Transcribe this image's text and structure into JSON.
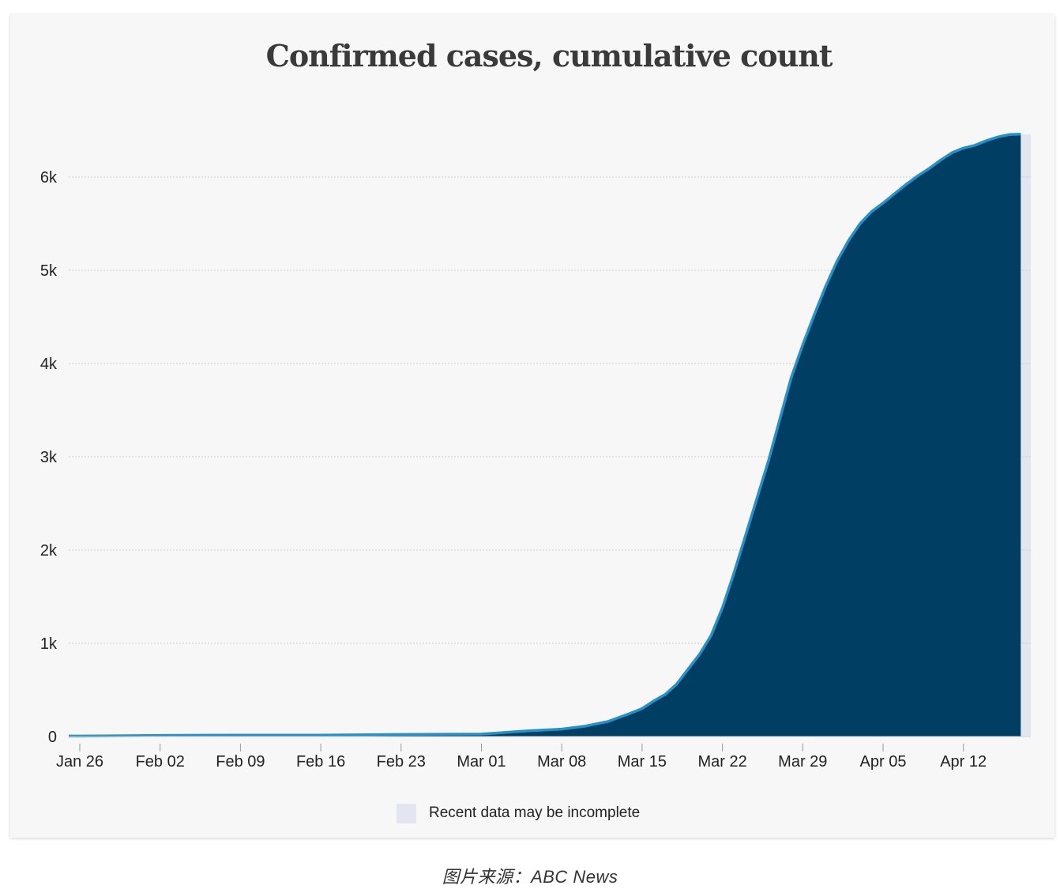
{
  "chart_data": {
    "type": "area",
    "title": "Confirmed cases, cumulative count",
    "xlabel": "",
    "ylabel": "",
    "x_start": "2020-01-26",
    "x_tick_labels": [
      "Jan 26",
      "Feb 02",
      "Feb 09",
      "Feb 16",
      "Feb 23",
      "Mar 01",
      "Mar 08",
      "Mar 15",
      "Mar 22",
      "Mar 29",
      "Apr 05",
      "Apr 12"
    ],
    "y_tick_labels": [
      "0",
      "1k",
      "2k",
      "3k",
      "4k",
      "5k",
      "6k"
    ],
    "y_ticks": [
      0,
      1000,
      2000,
      3000,
      4000,
      5000,
      6000
    ],
    "ylim": [
      0,
      6500
    ],
    "grid": true,
    "legend": {
      "position": "bottom",
      "entries": [
        "Recent data may be incomplete"
      ]
    },
    "incomplete_period": {
      "from": "2020-04-16",
      "to": "2020-04-17"
    },
    "colors": {
      "area_fill": "#003f63",
      "line": "#2a8fc4",
      "incomplete_band": "#e3e6f0",
      "grid": "#cccccc"
    },
    "series": [
      {
        "values": [
          {
            "x": "2020-01-26",
            "y": 5
          },
          {
            "x": "2020-02-02",
            "y": 12
          },
          {
            "x": "2020-02-09",
            "y": 15
          },
          {
            "x": "2020-02-16",
            "y": 15
          },
          {
            "x": "2020-02-23",
            "y": 22
          },
          {
            "x": "2020-03-01",
            "y": 26
          },
          {
            "x": "2020-03-05",
            "y": 60
          },
          {
            "x": "2020-03-08",
            "y": 80
          },
          {
            "x": "2020-03-10",
            "y": 110
          },
          {
            "x": "2020-03-12",
            "y": 160
          },
          {
            "x": "2020-03-14",
            "y": 250
          },
          {
            "x": "2020-03-15",
            "y": 300
          },
          {
            "x": "2020-03-16",
            "y": 380
          },
          {
            "x": "2020-03-17",
            "y": 450
          },
          {
            "x": "2020-03-18",
            "y": 560
          },
          {
            "x": "2020-03-19",
            "y": 720
          },
          {
            "x": "2020-03-20",
            "y": 880
          },
          {
            "x": "2020-03-21",
            "y": 1080
          },
          {
            "x": "2020-03-22",
            "y": 1380
          },
          {
            "x": "2020-03-23",
            "y": 1750
          },
          {
            "x": "2020-03-24",
            "y": 2150
          },
          {
            "x": "2020-03-25",
            "y": 2550
          },
          {
            "x": "2020-03-26",
            "y": 2950
          },
          {
            "x": "2020-03-27",
            "y": 3400
          },
          {
            "x": "2020-03-28",
            "y": 3850
          },
          {
            "x": "2020-03-29",
            "y": 4200
          },
          {
            "x": "2020-03-30",
            "y": 4520
          },
          {
            "x": "2020-03-31",
            "y": 4830
          },
          {
            "x": "2020-04-01",
            "y": 5100
          },
          {
            "x": "2020-04-02",
            "y": 5320
          },
          {
            "x": "2020-04-03",
            "y": 5500
          },
          {
            "x": "2020-04-04",
            "y": 5630
          },
          {
            "x": "2020-04-05",
            "y": 5720
          },
          {
            "x": "2020-04-06",
            "y": 5820
          },
          {
            "x": "2020-04-07",
            "y": 5920
          },
          {
            "x": "2020-04-08",
            "y": 6010
          },
          {
            "x": "2020-04-09",
            "y": 6090
          },
          {
            "x": "2020-04-10",
            "y": 6180
          },
          {
            "x": "2020-04-11",
            "y": 6260
          },
          {
            "x": "2020-04-12",
            "y": 6310
          },
          {
            "x": "2020-04-13",
            "y": 6340
          },
          {
            "x": "2020-04-14",
            "y": 6390
          },
          {
            "x": "2020-04-15",
            "y": 6430
          },
          {
            "x": "2020-04-16",
            "y": 6455
          },
          {
            "x": "2020-04-17",
            "y": 6460
          }
        ]
      }
    ]
  },
  "source_caption": "图片来源：ABC News"
}
